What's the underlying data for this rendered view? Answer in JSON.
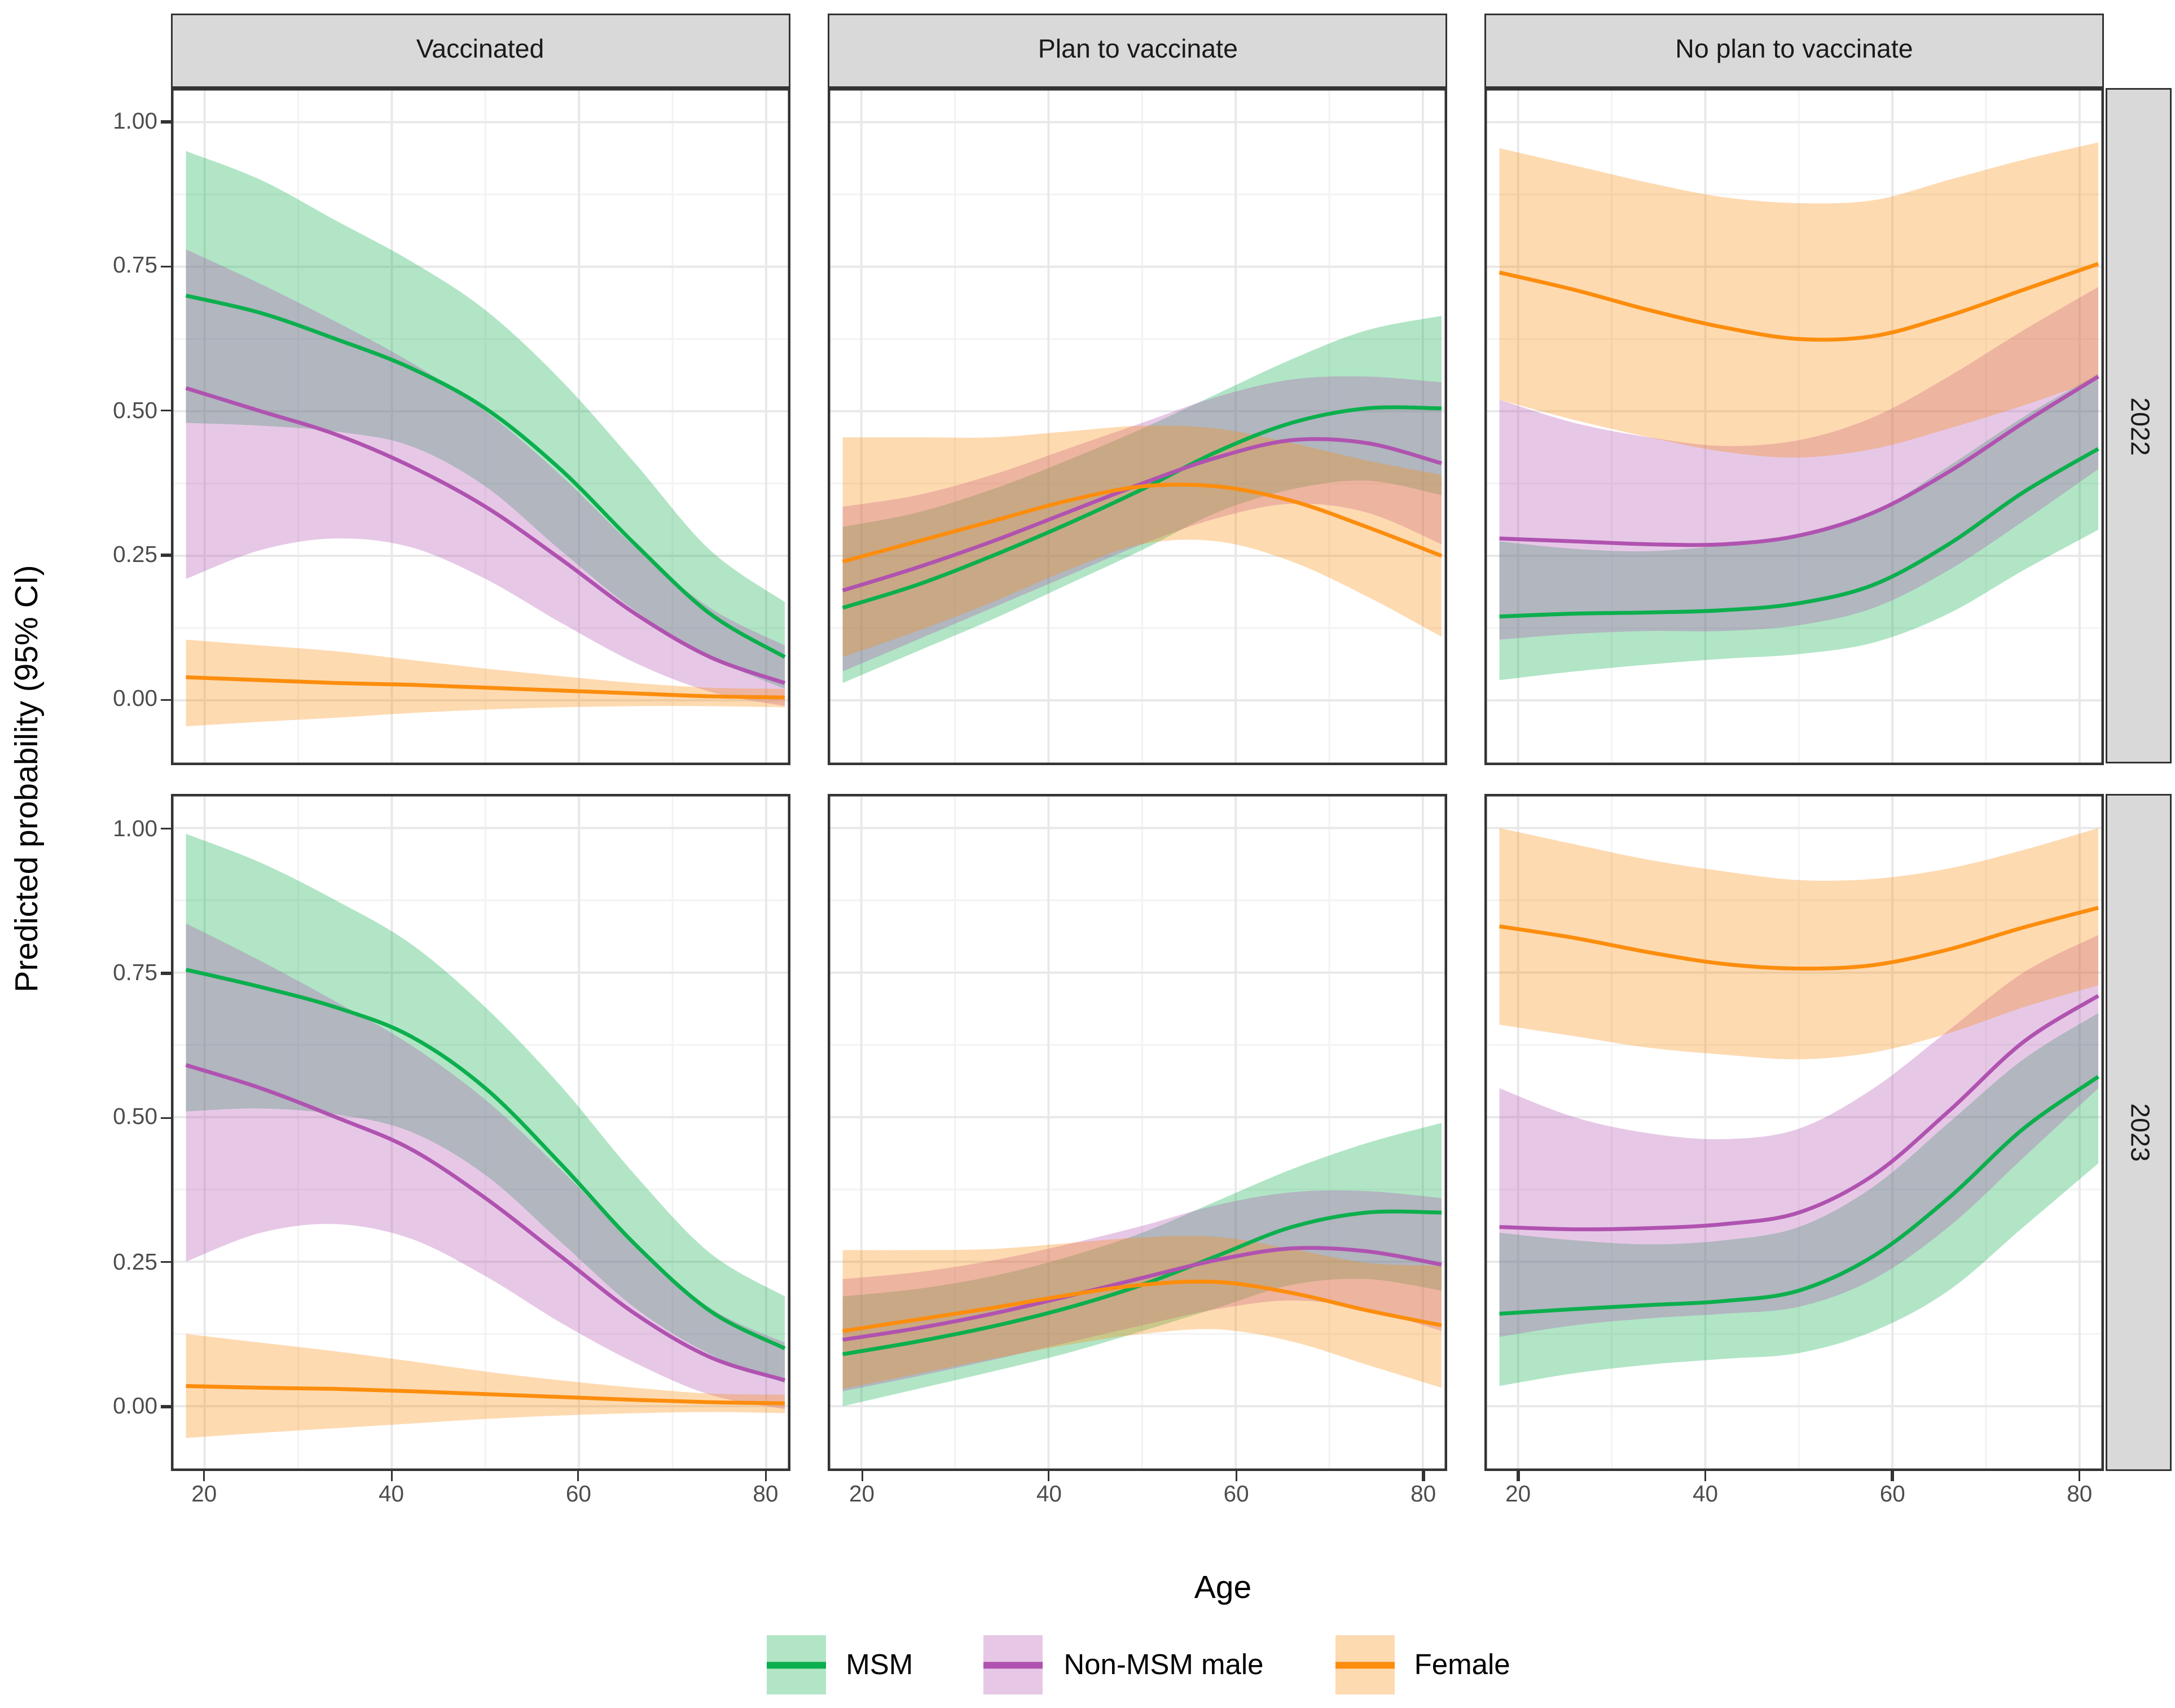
{
  "figure": {
    "y_axis_title": "Predicted probability (95% CI)",
    "x_axis_title": "Age",
    "col_facets": [
      "Vaccinated",
      "Plan to vaccinate",
      "No plan to vaccinate"
    ],
    "row_facets": [
      "2022",
      "2023"
    ],
    "x_tick_labels": [
      "20",
      "40",
      "60",
      "80"
    ],
    "y_tick_labels": [
      "1.00",
      "0.75",
      "0.50",
      "0.25",
      "0.00"
    ],
    "strip_fill": "#d9d9d9",
    "panel_border_color": "#333333",
    "grid_major_color": "#e8e8e8",
    "grid_minor_color": "#f3f3f3"
  },
  "legend": {
    "items": [
      {
        "label": "MSM",
        "line_color": "#0CAF4D",
        "fill_color": "#B1E5C6"
      },
      {
        "label": "Non-MSM male",
        "line_color": "#B053B0",
        "fill_color": "#E6C8E6"
      },
      {
        "label": "Female",
        "line_color": "#FC8D0D",
        "fill_color": "#FEDAB1"
      }
    ]
  },
  "chart_data": {
    "type": "line",
    "description": "Faceted predicted probability curves with 95% CI ribbons; columns = vaccination status, rows = year",
    "xlabel": "Age",
    "ylabel": "Predicted probability (95% CI)",
    "x_ticks": [
      20,
      40,
      60,
      80
    ],
    "y_ticks": [
      1.0,
      0.75,
      0.5,
      0.25,
      0.0
    ],
    "y_minor_ticks": [
      0.875,
      0.625,
      0.375,
      0.125
    ],
    "x_minor_ticks": [
      30,
      50,
      70
    ],
    "xlim": [
      16.4,
      82.6
    ],
    "ylim": [
      -0.112,
      1.059
    ],
    "grid": true,
    "legend_position": "bottom",
    "ages": [
      18,
      26,
      34,
      42,
      50,
      58,
      66,
      74,
      82
    ],
    "ribbon_opacity": 0.32,
    "facets": [
      {
        "row": "2022",
        "col": "Vaccinated",
        "series": [
          {
            "name": "MSM",
            "color": "#0CAF4D",
            "mean": [
              0.7,
              0.67,
              0.625,
              0.575,
              0.505,
              0.4,
              0.27,
              0.15,
              0.075
            ],
            "upper": [
              0.95,
              0.9,
              0.83,
              0.76,
              0.675,
              0.555,
              0.41,
              0.26,
              0.17
            ],
            "lower": [
              0.48,
              0.475,
              0.465,
              0.44,
              0.37,
              0.26,
              0.155,
              0.075,
              0.02
            ]
          },
          {
            "name": "Non-MSM male",
            "color": "#B053B0",
            "mean": [
              0.54,
              0.5,
              0.46,
              0.405,
              0.335,
              0.245,
              0.15,
              0.075,
              0.03
            ],
            "upper": [
              0.78,
              0.72,
              0.655,
              0.585,
              0.5,
              0.39,
              0.265,
              0.16,
              0.095
            ],
            "lower": [
              0.21,
              0.26,
              0.28,
              0.265,
              0.21,
              0.135,
              0.065,
              0.015,
              -0.01
            ]
          },
          {
            "name": "Female",
            "color": "#FC8D0D",
            "mean": [
              0.04,
              0.035,
              0.03,
              0.027,
              0.022,
              0.017,
              0.012,
              0.007,
              0.005
            ],
            "upper": [
              0.105,
              0.095,
              0.085,
              0.07,
              0.055,
              0.042,
              0.03,
              0.022,
              0.02
            ],
            "lower": [
              -0.045,
              -0.037,
              -0.03,
              -0.022,
              -0.016,
              -0.012,
              -0.01,
              -0.01,
              -0.012
            ]
          }
        ]
      },
      {
        "row": "2022",
        "col": "Plan to vaccinate",
        "series": [
          {
            "name": "MSM",
            "color": "#0CAF4D",
            "mean": [
              0.16,
              0.2,
              0.25,
              0.305,
              0.365,
              0.43,
              0.48,
              0.505,
              0.505
            ],
            "upper": [
              0.3,
              0.325,
              0.365,
              0.415,
              0.47,
              0.53,
              0.59,
              0.64,
              0.665
            ],
            "lower": [
              0.03,
              0.085,
              0.14,
              0.2,
              0.26,
              0.325,
              0.365,
              0.38,
              0.355
            ]
          },
          {
            "name": "Non-MSM male",
            "color": "#B053B0",
            "mean": [
              0.19,
              0.23,
              0.275,
              0.325,
              0.375,
              0.42,
              0.45,
              0.445,
              0.41
            ],
            "upper": [
              0.335,
              0.355,
              0.39,
              0.435,
              0.48,
              0.525,
              0.555,
              0.56,
              0.55
            ],
            "lower": [
              0.05,
              0.105,
              0.16,
              0.215,
              0.27,
              0.315,
              0.34,
              0.325,
              0.27
            ]
          },
          {
            "name": "Female",
            "color": "#FC8D0D",
            "mean": [
              0.24,
              0.275,
              0.31,
              0.345,
              0.37,
              0.37,
              0.345,
              0.3,
              0.25
            ],
            "upper": [
              0.455,
              0.455,
              0.455,
              0.465,
              0.475,
              0.47,
              0.445,
              0.415,
              0.39
            ],
            "lower": [
              0.075,
              0.12,
              0.17,
              0.225,
              0.27,
              0.275,
              0.24,
              0.18,
              0.11
            ]
          }
        ]
      },
      {
        "row": "2022",
        "col": "No plan to vaccinate",
        "series": [
          {
            "name": "MSM",
            "color": "#0CAF4D",
            "mean": [
              0.145,
              0.15,
              0.152,
              0.156,
              0.168,
              0.2,
              0.27,
              0.36,
              0.435
            ],
            "upper": [
              0.275,
              0.262,
              0.258,
              0.268,
              0.285,
              0.325,
              0.405,
              0.49,
              0.565
            ],
            "lower": [
              0.035,
              0.05,
              0.062,
              0.072,
              0.08,
              0.1,
              0.15,
              0.225,
              0.295
            ]
          },
          {
            "name": "Non-MSM male",
            "color": "#B053B0",
            "mean": [
              0.28,
              0.275,
              0.27,
              0.27,
              0.285,
              0.325,
              0.395,
              0.48,
              0.56
            ],
            "upper": [
              0.52,
              0.48,
              0.455,
              0.44,
              0.45,
              0.49,
              0.56,
              0.64,
              0.715
            ],
            "lower": [
              0.105,
              0.115,
              0.12,
              0.12,
              0.13,
              0.16,
              0.225,
              0.31,
              0.4
            ]
          },
          {
            "name": "Female",
            "color": "#FC8D0D",
            "mean": [
              0.74,
              0.71,
              0.675,
              0.645,
              0.625,
              0.63,
              0.665,
              0.71,
              0.755
            ],
            "upper": [
              0.955,
              0.925,
              0.895,
              0.87,
              0.86,
              0.865,
              0.9,
              0.935,
              0.965
            ],
            "lower": [
              0.52,
              0.485,
              0.455,
              0.43,
              0.42,
              0.435,
              0.47,
              0.51,
              0.555
            ]
          }
        ]
      },
      {
        "row": "2023",
        "col": "Vaccinated",
        "series": [
          {
            "name": "MSM",
            "color": "#0CAF4D",
            "mean": [
              0.755,
              0.725,
              0.69,
              0.64,
              0.55,
              0.42,
              0.28,
              0.165,
              0.1
            ],
            "upper": [
              0.99,
              0.94,
              0.875,
              0.8,
              0.69,
              0.555,
              0.4,
              0.265,
              0.19
            ],
            "lower": [
              0.51,
              0.515,
              0.505,
              0.475,
              0.4,
              0.285,
              0.17,
              0.09,
              0.04
            ]
          },
          {
            "name": "Non-MSM male",
            "color": "#B053B0",
            "mean": [
              0.59,
              0.55,
              0.5,
              0.445,
              0.36,
              0.26,
              0.16,
              0.085,
              0.045
            ],
            "upper": [
              0.835,
              0.77,
              0.7,
              0.625,
              0.53,
              0.41,
              0.28,
              0.17,
              0.11
            ],
            "lower": [
              0.25,
              0.3,
              0.315,
              0.29,
              0.225,
              0.145,
              0.075,
              0.02,
              -0.005
            ]
          },
          {
            "name": "Female",
            "color": "#FC8D0D",
            "mean": [
              0.035,
              0.032,
              0.03,
              0.026,
              0.021,
              0.016,
              0.011,
              0.007,
              0.005
            ],
            "upper": [
              0.125,
              0.11,
              0.095,
              0.078,
              0.06,
              0.045,
              0.032,
              0.022,
              0.02
            ],
            "lower": [
              -0.055,
              -0.046,
              -0.038,
              -0.03,
              -0.022,
              -0.016,
              -0.012,
              -0.01,
              -0.012
            ]
          }
        ]
      },
      {
        "row": "2023",
        "col": "Plan to vaccinate",
        "series": [
          {
            "name": "MSM",
            "color": "#0CAF4D",
            "mean": [
              0.09,
              0.112,
              0.138,
              0.17,
              0.21,
              0.26,
              0.31,
              0.335,
              0.335
            ],
            "upper": [
              0.19,
              0.203,
              0.225,
              0.258,
              0.3,
              0.355,
              0.41,
              0.455,
              0.49
            ],
            "lower": [
              0.0,
              0.03,
              0.06,
              0.092,
              0.13,
              0.17,
              0.21,
              0.22,
              0.2
            ]
          },
          {
            "name": "Non-MSM male",
            "color": "#B053B0",
            "mean": [
              0.115,
              0.135,
              0.16,
              0.19,
              0.222,
              0.253,
              0.273,
              0.268,
              0.245
            ],
            "upper": [
              0.22,
              0.232,
              0.252,
              0.28,
              0.312,
              0.348,
              0.37,
              0.372,
              0.36
            ],
            "lower": [
              0.026,
              0.052,
              0.08,
              0.11,
              0.14,
              0.168,
              0.183,
              0.168,
              0.13
            ]
          },
          {
            "name": "Female",
            "color": "#FC8D0D",
            "mean": [
              0.13,
              0.15,
              0.17,
              0.192,
              0.21,
              0.215,
              0.196,
              0.166,
              0.14
            ],
            "upper": [
              0.27,
              0.27,
              0.272,
              0.282,
              0.292,
              0.293,
              0.272,
              0.248,
              0.243
            ],
            "lower": [
              0.03,
              0.056,
              0.082,
              0.106,
              0.125,
              0.133,
              0.112,
              0.072,
              0.032
            ]
          }
        ]
      },
      {
        "row": "2023",
        "col": "No plan to vaccinate",
        "series": [
          {
            "name": "MSM",
            "color": "#0CAF4D",
            "mean": [
              0.16,
              0.168,
              0.175,
              0.182,
              0.2,
              0.26,
              0.36,
              0.48,
              0.57
            ],
            "upper": [
              0.3,
              0.287,
              0.28,
              0.287,
              0.31,
              0.38,
              0.49,
              0.6,
              0.68
            ],
            "lower": [
              0.035,
              0.057,
              0.072,
              0.082,
              0.092,
              0.13,
              0.2,
              0.31,
              0.42
            ]
          },
          {
            "name": "Non-MSM male",
            "color": "#B053B0",
            "mean": [
              0.31,
              0.306,
              0.308,
              0.315,
              0.335,
              0.4,
              0.51,
              0.63,
              0.71
            ],
            "upper": [
              0.55,
              0.5,
              0.472,
              0.462,
              0.48,
              0.55,
              0.65,
              0.75,
              0.815
            ],
            "lower": [
              0.12,
              0.14,
              0.152,
              0.16,
              0.172,
              0.22,
              0.31,
              0.43,
              0.55
            ]
          },
          {
            "name": "Female",
            "color": "#FC8D0D",
            "mean": [
              0.83,
              0.81,
              0.785,
              0.765,
              0.757,
              0.763,
              0.79,
              0.828,
              0.862
            ],
            "upper": [
              1.0,
              0.972,
              0.945,
              0.925,
              0.91,
              0.912,
              0.93,
              0.962,
              1.0
            ],
            "lower": [
              0.66,
              0.64,
              0.62,
              0.608,
              0.6,
              0.612,
              0.645,
              0.69,
              0.728
            ]
          }
        ]
      }
    ]
  }
}
